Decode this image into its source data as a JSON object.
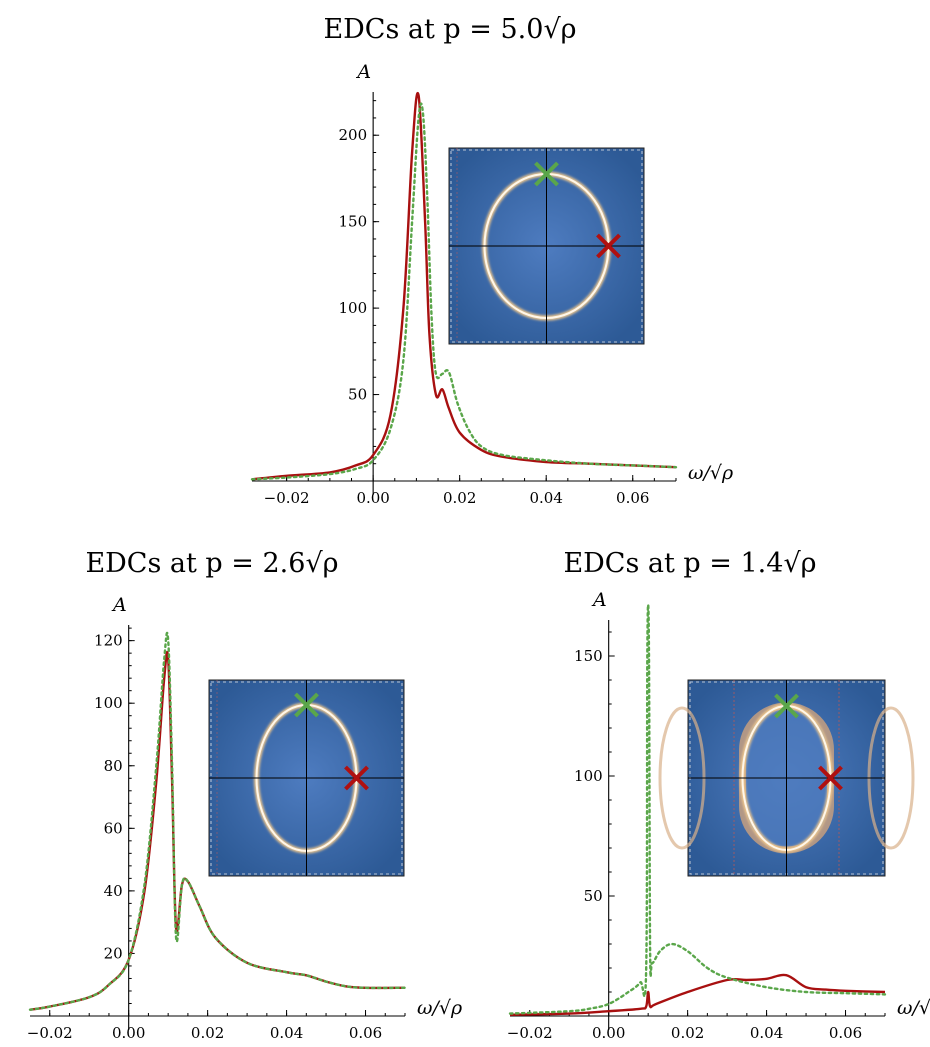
{
  "chart_data": [
    {
      "type": "line",
      "title": "EDCs at p = 5.0√ρ",
      "ylabel": "A",
      "xlabel": "ω/√ρ",
      "xlim": [
        -0.028,
        0.07
      ],
      "ylim": [
        0,
        225
      ],
      "xticks": [
        -0.02,
        0.0,
        0.02,
        0.04,
        0.06
      ],
      "xtick_labels": [
        "−0.02",
        "0.00",
        "0.02",
        "0.04",
        "0.06"
      ],
      "yticks": [
        50,
        100,
        150,
        200
      ],
      "series": [
        {
          "color": "#a81010",
          "style": "solid",
          "x": [
            -0.028,
            -0.02,
            -0.01,
            -0.004,
            0.0,
            0.004,
            0.007,
            0.009,
            0.0105,
            0.012,
            0.013,
            0.0145,
            0.016,
            0.0175,
            0.02,
            0.025,
            0.03,
            0.04,
            0.05,
            0.06,
            0.07
          ],
          "y": [
            1,
            3,
            5,
            9,
            15,
            38,
            100,
            190,
            223,
            150,
            85,
            50,
            53,
            42,
            28,
            18,
            14,
            11,
            10,
            9,
            8
          ]
        },
        {
          "color": "#5aa64a",
          "style": "dotted",
          "x": [
            -0.028,
            -0.02,
            -0.01,
            -0.004,
            0.0,
            0.004,
            0.007,
            0.009,
            0.0105,
            0.0115,
            0.0125,
            0.0135,
            0.0145,
            0.016,
            0.0175,
            0.0195,
            0.022,
            0.025,
            0.03,
            0.04,
            0.05,
            0.06,
            0.07
          ],
          "y": [
            1,
            2,
            4,
            7,
            12,
            30,
            70,
            150,
            210,
            213,
            165,
            95,
            62,
            62,
            63,
            45,
            30,
            20,
            15,
            12,
            10,
            9,
            8
          ]
        }
      ]
    },
    {
      "type": "line",
      "title": "EDCs at p = 2.6√ρ",
      "ylabel": "A",
      "xlabel": "ω/√ρ",
      "xlim": [
        -0.025,
        0.07
      ],
      "ylim": [
        0,
        125
      ],
      "xticks": [
        -0.02,
        0.0,
        0.02,
        0.04,
        0.06
      ],
      "xtick_labels": [
        "−0.02",
        "0.00",
        "0.02",
        "0.04",
        "0.06"
      ],
      "yticks": [
        20,
        40,
        60,
        80,
        100,
        120
      ],
      "series": [
        {
          "color": "#a81010",
          "style": "solid",
          "x": [
            -0.025,
            -0.02,
            -0.01,
            -0.005,
            0.0,
            0.004,
            0.007,
            0.009,
            0.01,
            0.011,
            0.012,
            0.0135,
            0.015,
            0.018,
            0.022,
            0.03,
            0.04,
            0.045,
            0.05,
            0.055,
            0.06,
            0.07
          ],
          "y": [
            2,
            3,
            6,
            10,
            18,
            40,
            75,
            108,
            114,
            75,
            28,
            42,
            43,
            35,
            25,
            17,
            14,
            13,
            11,
            9.5,
            9,
            9
          ]
        },
        {
          "color": "#5aa64a",
          "style": "dotted",
          "x": [
            -0.025,
            -0.02,
            -0.01,
            -0.005,
            0.0,
            0.004,
            0.007,
            0.009,
            0.01,
            0.011,
            0.012,
            0.0135,
            0.015,
            0.018,
            0.022,
            0.03,
            0.04,
            0.045,
            0.05,
            0.055,
            0.06,
            0.07
          ],
          "y": [
            2,
            3,
            6,
            10,
            18,
            42,
            80,
            114,
            120,
            80,
            25,
            42,
            43,
            35,
            25,
            17,
            14,
            13,
            11,
            9.5,
            9,
            9
          ]
        }
      ]
    },
    {
      "type": "line",
      "title": "EDCs at p = 1.4√ρ",
      "ylabel": "A",
      "xlabel": "ω/√ρ",
      "xlim": [
        -0.025,
        0.07
      ],
      "ylim": [
        0,
        165
      ],
      "xticks": [
        -0.02,
        0.0,
        0.02,
        0.04,
        0.06
      ],
      "xtick_labels": [
        "−0.02",
        "0.00",
        "0.02",
        "0.04",
        "0.06"
      ],
      "yticks": [
        50,
        100,
        150
      ],
      "series": [
        {
          "color": "#a81010",
          "style": "solid",
          "x": [
            -0.025,
            -0.01,
            0.0,
            0.008,
            0.0095,
            0.01,
            0.0105,
            0.012,
            0.02,
            0.03,
            0.035,
            0.04,
            0.045,
            0.05,
            0.055,
            0.06,
            0.07
          ],
          "y": [
            0.5,
            1,
            2,
            3,
            4,
            10,
            4,
            5,
            10,
            15,
            15,
            15.5,
            17,
            12,
            11,
            10.5,
            10
          ]
        },
        {
          "color": "#5aa64a",
          "style": "dotted",
          "x": [
            -0.025,
            -0.01,
            -0.005,
            0.0,
            0.005,
            0.008,
            0.0095,
            0.0098,
            0.0102,
            0.0105,
            0.011,
            0.013,
            0.016,
            0.02,
            0.025,
            0.03,
            0.04,
            0.05,
            0.06,
            0.07
          ],
          "y": [
            1,
            2,
            3,
            5,
            10,
            14,
            20,
            155,
            155,
            28,
            22,
            27,
            30,
            27,
            20,
            16,
            12,
            10,
            9.5,
            9
          ]
        }
      ]
    }
  ]
}
